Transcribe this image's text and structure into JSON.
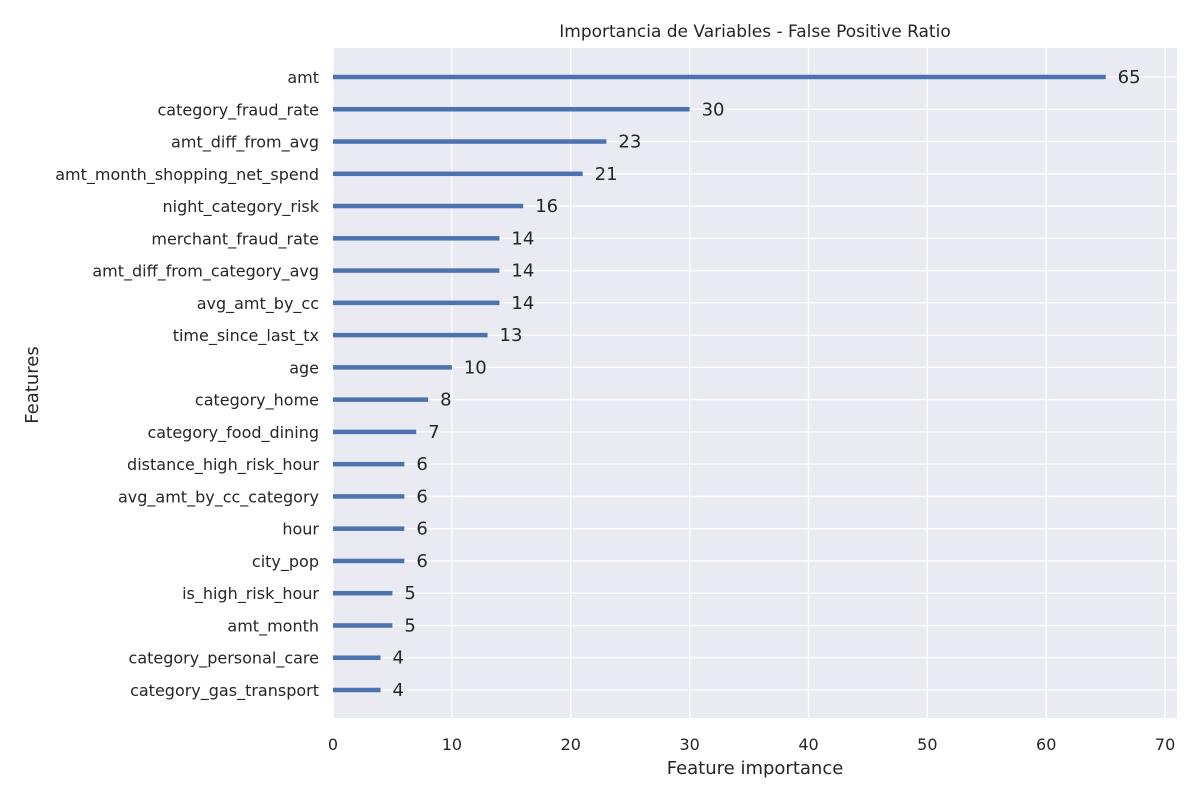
{
  "chart_data": {
    "type": "bar",
    "orientation": "horizontal",
    "title": "Importancia de Variables - False Positive Ratio",
    "xlabel": "Feature importance",
    "ylabel": "Features",
    "xlim": [
      0,
      71
    ],
    "xticks": [
      0,
      10,
      20,
      30,
      40,
      50,
      60,
      70
    ],
    "grid": true,
    "categories": [
      "amt",
      "category_fraud_rate",
      "amt_diff_from_avg",
      "amt_month_shopping_net_spend",
      "night_category_risk",
      "merchant_fraud_rate",
      "amt_diff_from_category_avg",
      "avg_amt_by_cc",
      "time_since_last_tx",
      "age",
      "category_home",
      "category_food_dining",
      "distance_high_risk_hour",
      "avg_amt_by_cc_category",
      "hour",
      "city_pop",
      "is_high_risk_hour",
      "amt_month",
      "category_personal_care",
      "category_gas_transport"
    ],
    "values": [
      65,
      30,
      23,
      21,
      16,
      14,
      14,
      14,
      13,
      10,
      8,
      7,
      6,
      6,
      6,
      6,
      5,
      5,
      4,
      4
    ],
    "colors": {
      "bar": "#4c72b0",
      "background": "#eaeaf2",
      "grid": "#ffffff",
      "text": "#262626"
    }
  }
}
